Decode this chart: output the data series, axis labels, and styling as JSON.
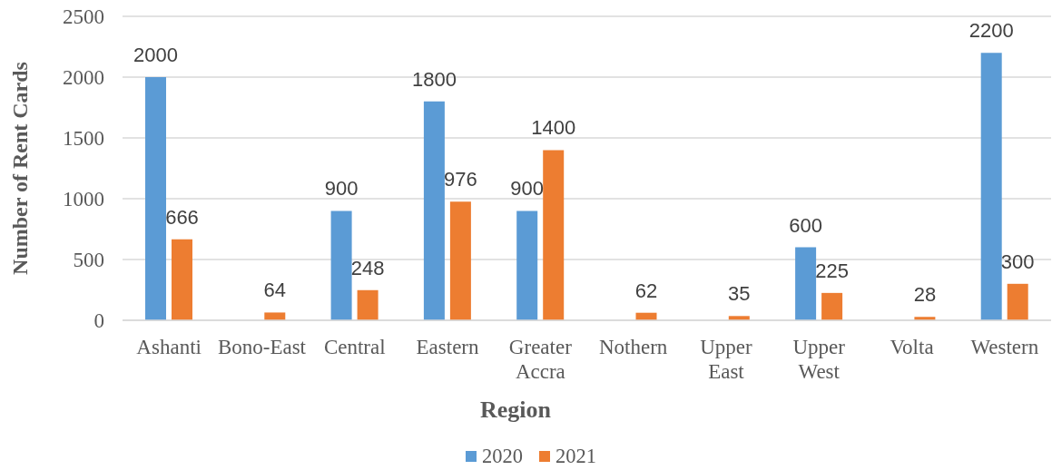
{
  "chart_data": {
    "type": "bar",
    "xlabel": "Region",
    "ylabel": "Number of Rent Cards",
    "categories": [
      "Ashanti",
      "Bono-East",
      "Central",
      "Eastern",
      "Greater Accra",
      "Nothern",
      "Upper East",
      "Upper West",
      "Volta",
      "Western"
    ],
    "series": [
      {
        "name": "2020",
        "color": "#5b9bd5",
        "values": [
          2000,
          null,
          900,
          1800,
          900,
          null,
          null,
          600,
          null,
          2200
        ]
      },
      {
        "name": "2021",
        "color": "#ed7d31",
        "values": [
          666,
          64,
          248,
          976,
          1400,
          62,
          35,
          225,
          28,
          300
        ]
      }
    ],
    "ylim": [
      0,
      2500
    ],
    "yticks": [
      0,
      500,
      1000,
      1500,
      2000,
      2500
    ],
    "grid": "y",
    "legend": "bottom",
    "data_labels": true
  }
}
